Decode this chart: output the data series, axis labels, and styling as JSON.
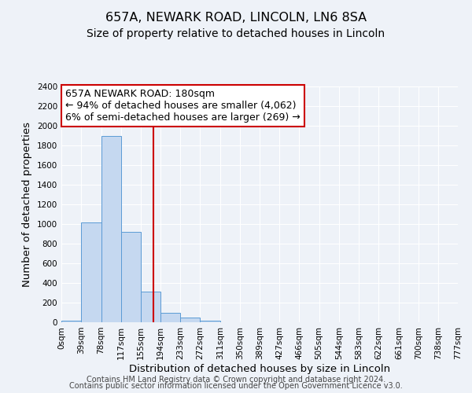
{
  "title": "657A, NEWARK ROAD, LINCOLN, LN6 8SA",
  "subtitle": "Size of property relative to detached houses in Lincoln",
  "xlabel": "Distribution of detached houses by size in Lincoln",
  "ylabel": "Number of detached properties",
  "bin_edges": [
    0,
    39,
    78,
    117,
    155,
    194,
    233,
    272,
    311,
    350,
    389,
    427,
    466,
    505,
    544,
    583,
    622,
    661,
    700,
    738,
    777
  ],
  "bin_labels": [
    "0sqm",
    "39sqm",
    "78sqm",
    "117sqm",
    "155sqm",
    "194sqm",
    "233sqm",
    "272sqm",
    "311sqm",
    "350sqm",
    "389sqm",
    "427sqm",
    "466sqm",
    "505sqm",
    "544sqm",
    "583sqm",
    "622sqm",
    "661sqm",
    "700sqm",
    "738sqm",
    "777sqm"
  ],
  "counts": [
    20,
    1020,
    1900,
    920,
    310,
    100,
    45,
    20,
    0,
    0,
    0,
    0,
    0,
    0,
    0,
    0,
    0,
    0,
    0,
    0
  ],
  "bar_color": "#c5d8f0",
  "bar_edge_color": "#5b9bd5",
  "vline_x": 180,
  "vline_color": "#cc0000",
  "annotation_line1": "657A NEWARK ROAD: 180sqm",
  "annotation_line2": "← 94% of detached houses are smaller (4,062)",
  "annotation_line3": "6% of semi-detached houses are larger (269) →",
  "ylim": [
    0,
    2400
  ],
  "yticks": [
    0,
    200,
    400,
    600,
    800,
    1000,
    1200,
    1400,
    1600,
    1800,
    2000,
    2200,
    2400
  ],
  "footer_line1": "Contains HM Land Registry data © Crown copyright and database right 2024.",
  "footer_line2": "Contains public sector information licensed under the Open Government Licence v3.0.",
  "background_color": "#eef2f8",
  "grid_color": "#ffffff",
  "title_fontsize": 11.5,
  "subtitle_fontsize": 10,
  "axis_label_fontsize": 9.5,
  "tick_fontsize": 7.5,
  "annotation_fontsize": 9,
  "footer_fontsize": 7
}
